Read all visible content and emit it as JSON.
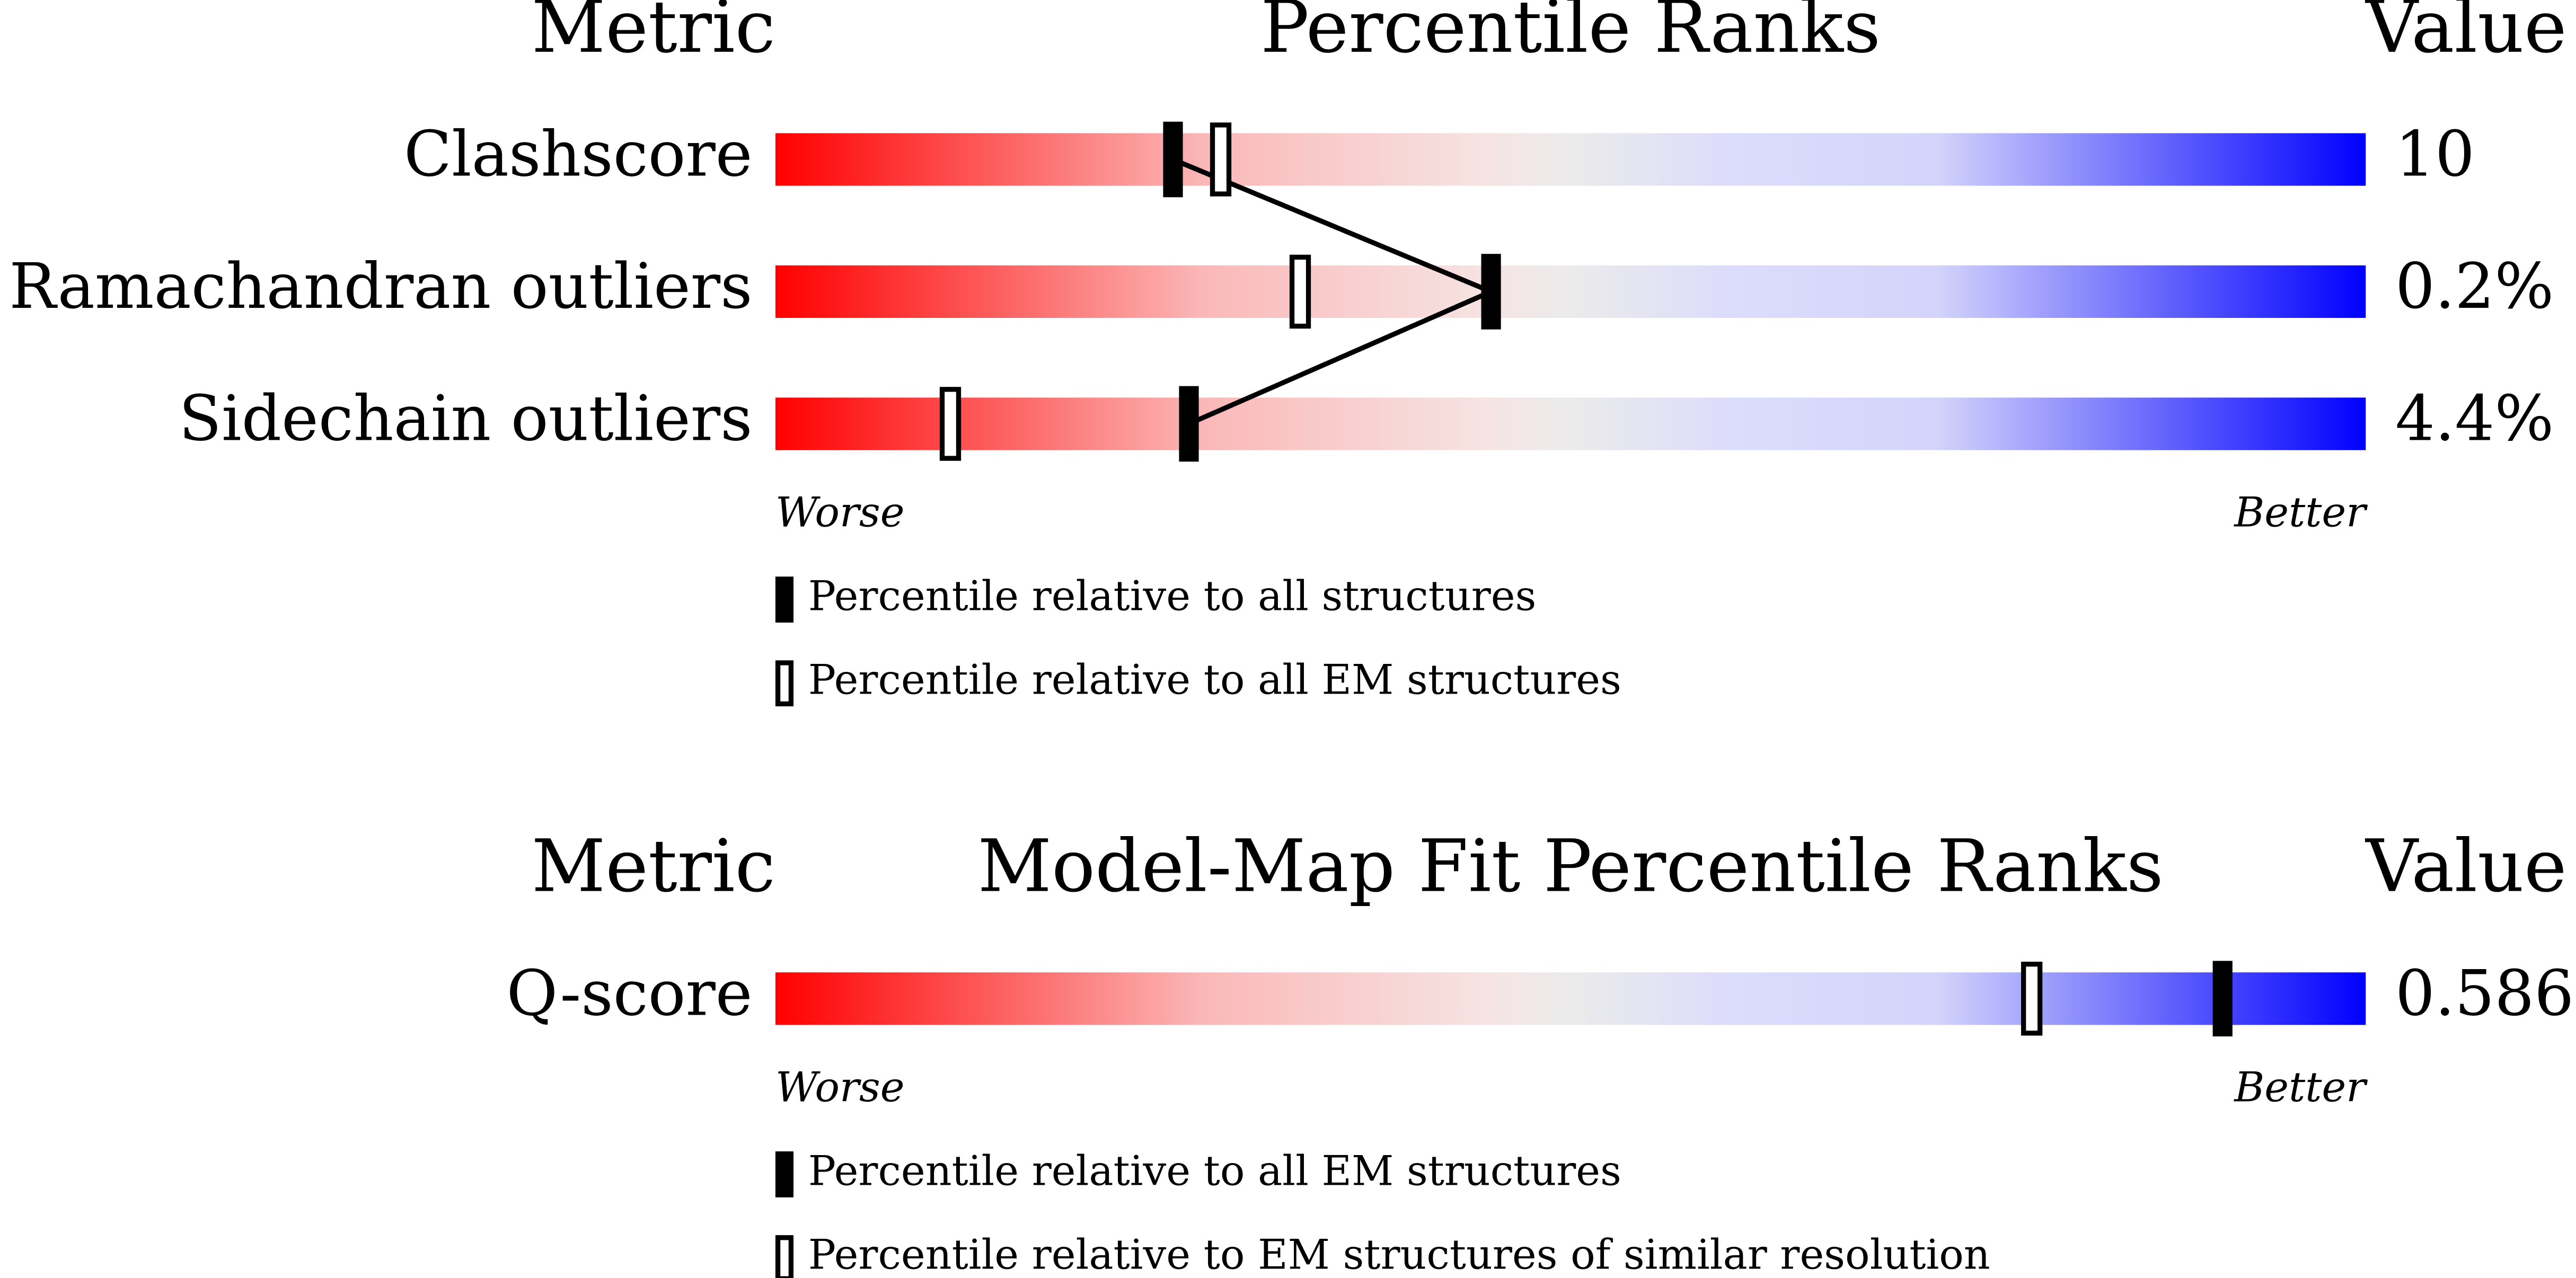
{
  "chart_data": [
    {
      "type": "percentile-slider",
      "headers": {
        "metric": "Metric",
        "title": "Percentile Ranks",
        "value": "Value"
      },
      "categories": [
        "Clashscore",
        "Ramachandran outliers",
        "Sidechain outliers"
      ],
      "printed_values": [
        "10",
        "0.2%",
        "4.4%"
      ],
      "xlim": [
        0,
        100
      ],
      "low_label": "Worse",
      "high_label": "Better",
      "series": [
        {
          "name": "Percentile relative to all structures",
          "marker": "filled",
          "connected": true,
          "values": [
            25,
            45,
            26
          ]
        },
        {
          "name": "Percentile relative to all EM structures",
          "marker": "open",
          "connected": false,
          "values": [
            28,
            33,
            11
          ]
        }
      ]
    },
    {
      "type": "percentile-slider",
      "headers": {
        "metric": "Metric",
        "title": "Model-Map Fit Percentile Ranks",
        "value": "Value"
      },
      "categories": [
        "Q-score"
      ],
      "printed_values": [
        "0.586"
      ],
      "xlim": [
        0,
        100
      ],
      "low_label": "Worse",
      "high_label": "Better",
      "series": [
        {
          "name": "Percentile relative to all EM structures",
          "marker": "filled",
          "connected": true,
          "values": [
            91
          ]
        },
        {
          "name": "Percentile relative to EM structures of similar resolution",
          "marker": "open",
          "connected": false,
          "values": [
            79
          ]
        }
      ]
    }
  ]
}
